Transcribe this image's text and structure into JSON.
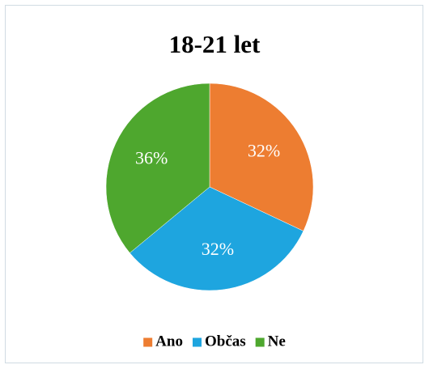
{
  "chart_data": {
    "type": "pie",
    "title": "18-21 let",
    "categories": [
      "Ano",
      "Občas",
      "Ne"
    ],
    "values": [
      32,
      32,
      36
    ],
    "value_labels": [
      "32%",
      "32%",
      "36%"
    ],
    "colors": [
      "#ed7d31",
      "#1ea5df",
      "#4ea72e"
    ],
    "legend": "bottom"
  }
}
